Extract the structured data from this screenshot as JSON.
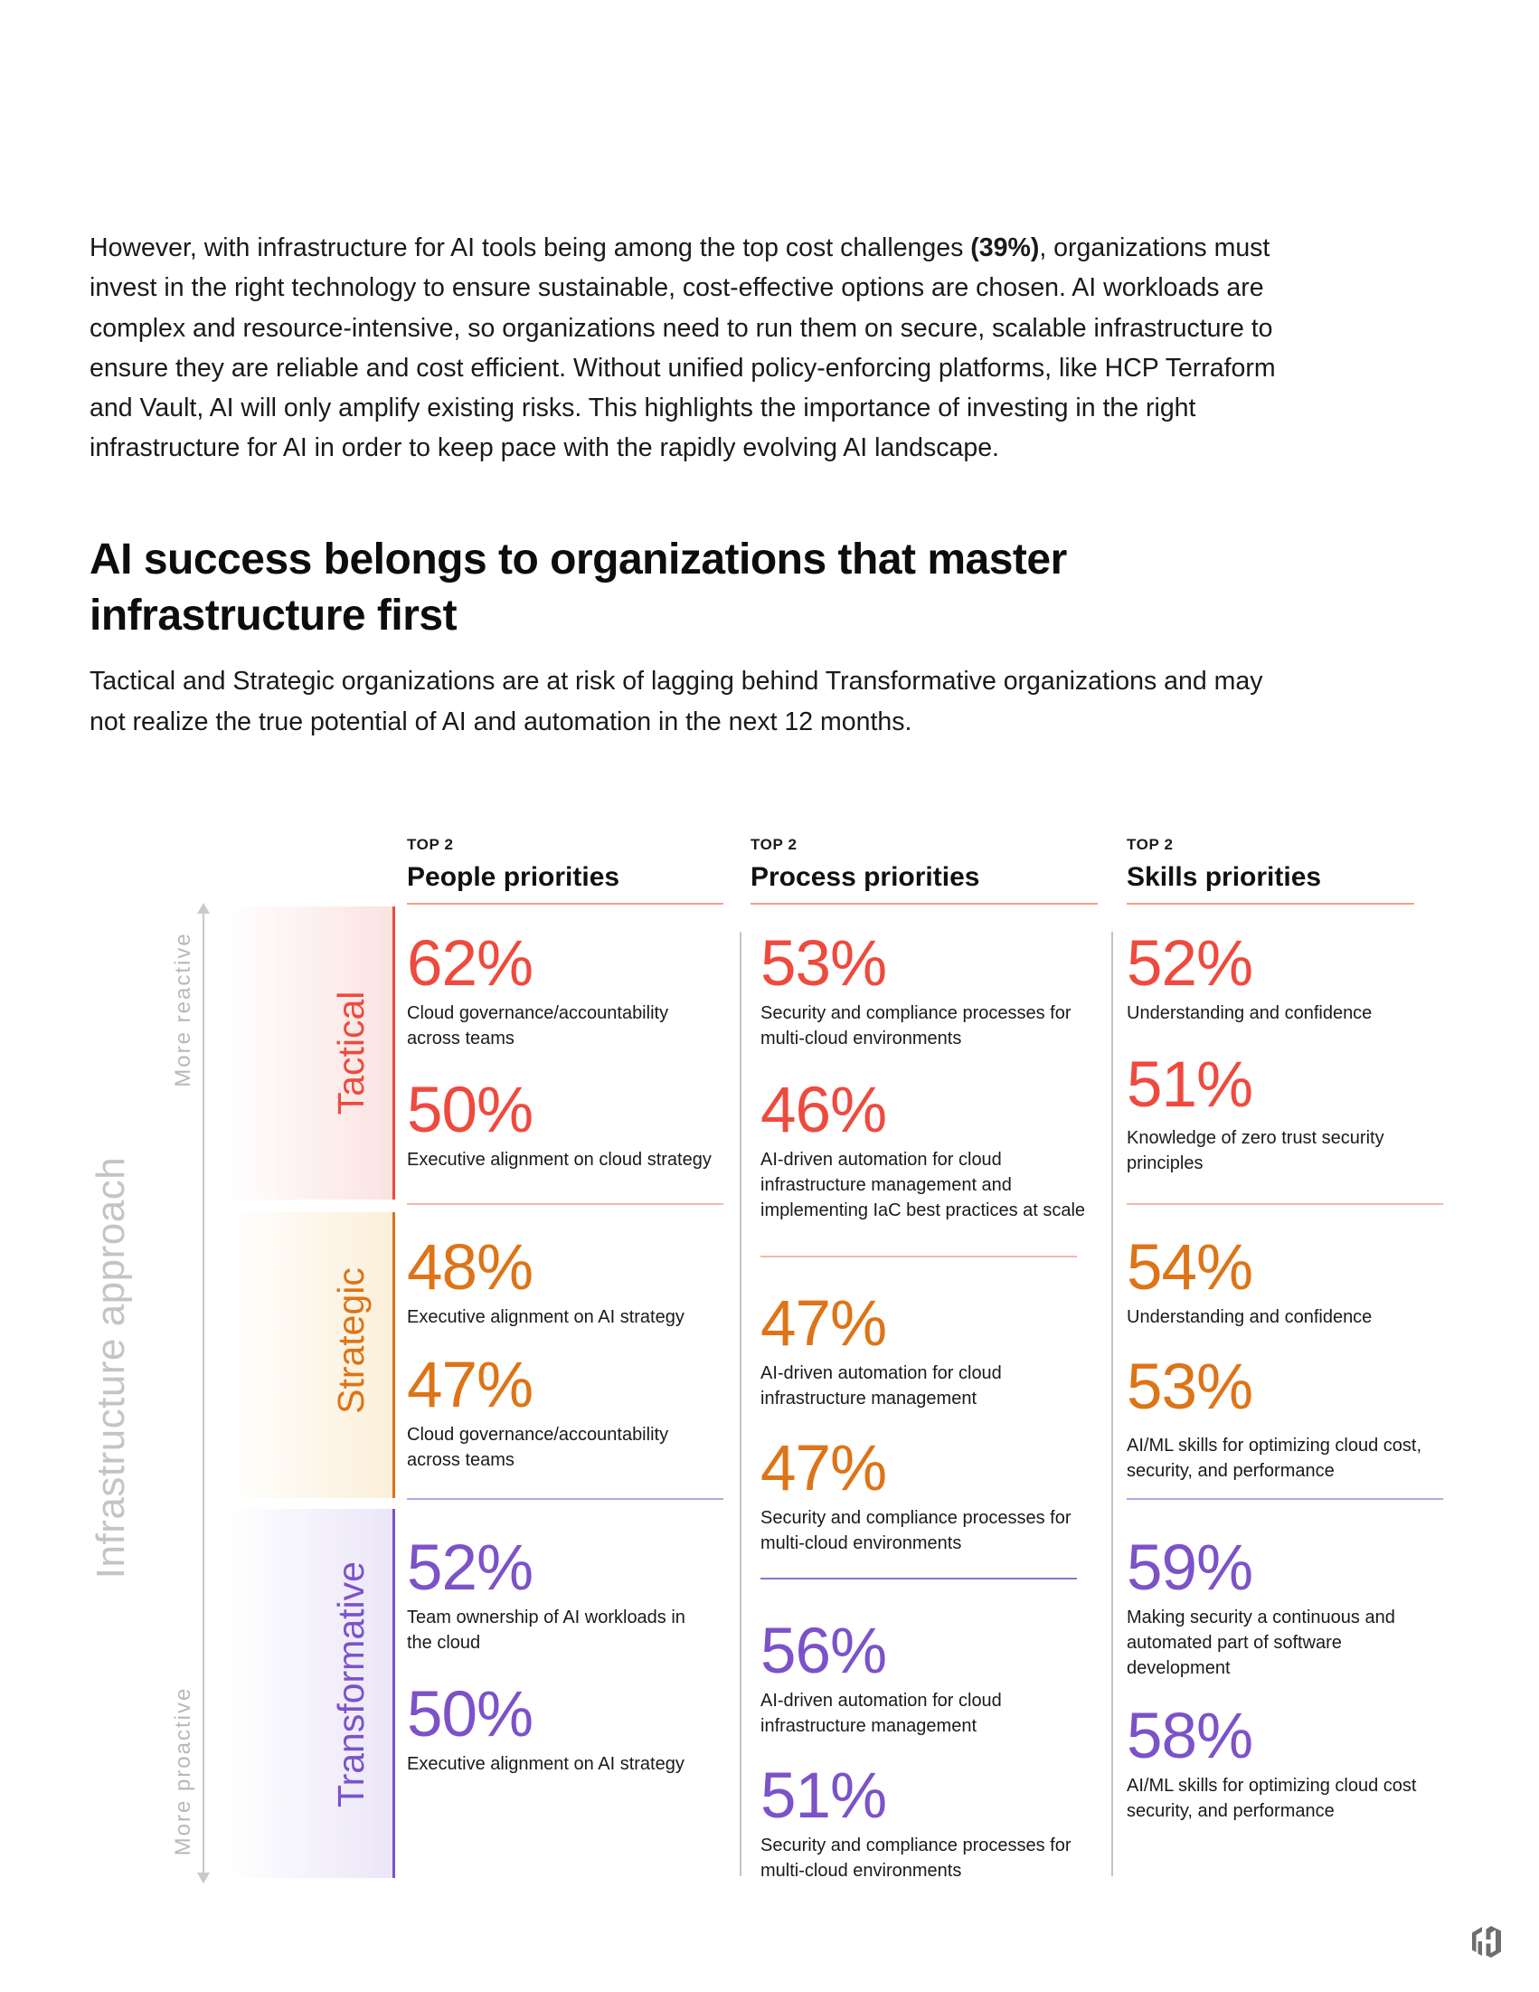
{
  "intro": {
    "text_before": "However, with infrastructure for AI tools being among the top cost challenges ",
    "highlight": "(39%)",
    "text_after": ", organizations must invest in the right technology to ensure sustainable, cost-effective options are chosen. AI workloads are complex and resource-intensive, so organizations need to run them on secure, scalable infrastructure to ensure they are reliable and cost efficient. Without unified policy-enforcing platforms, like HCP Terraform and Vault, AI will only amplify existing risks. This highlights the importance of investing in the right infrastructure for AI in order to keep pace with the rapidly evolving AI landscape."
  },
  "heading": "AI success belongs to organizations that master infrastructure first",
  "subtext": "Tactical and Strategic organizations are at risk of lagging behind Transformative organizations and may not realize the true potential of AI and automation in the next 12 months.",
  "axis": {
    "title": "Infrastructure approach",
    "top_label": "More reactive",
    "bottom_label": "More proactive"
  },
  "rows": {
    "tactical": {
      "label": "Tactical",
      "color": "#ee4a3e"
    },
    "strategic": {
      "label": "Strategic",
      "color": "#dd7417"
    },
    "transformative": {
      "label": "Transformative",
      "color": "#7c52c9"
    }
  },
  "columns": {
    "people": {
      "kicker": "TOP 2",
      "title": "People priorities",
      "tactical": [
        {
          "pct": "62%",
          "desc": "Cloud governance/accountability across teams"
        },
        {
          "pct": "50%",
          "desc": "Executive alignment on cloud strategy"
        }
      ],
      "strategic": [
        {
          "pct": "48%",
          "desc": "Executive alignment on AI strategy"
        },
        {
          "pct": "47%",
          "desc": "Cloud governance/accountability across teams"
        }
      ],
      "transformative": [
        {
          "pct": "52%",
          "desc": "Team ownership of AI workloads in the cloud"
        },
        {
          "pct": "50%",
          "desc": "Executive alignment on AI strategy"
        }
      ]
    },
    "process": {
      "kicker": "TOP 2",
      "title": "Process priorities",
      "tactical": [
        {
          "pct": "53%",
          "desc": "Security and compliance processes for multi-cloud environments"
        },
        {
          "pct": "46%",
          "desc": "AI-driven automation for cloud infrastructure management and implementing IaC best practices at scale"
        }
      ],
      "strategic": [
        {
          "pct": "47%",
          "desc": "AI-driven automation for cloud infrastructure management"
        },
        {
          "pct": "47%",
          "desc": "Security and compliance processes for multi-cloud environments"
        }
      ],
      "transformative": [
        {
          "pct": "56%",
          "desc": "AI-driven automation for cloud infrastructure management"
        },
        {
          "pct": "51%",
          "desc": "Security and compliance processes for multi-cloud environments"
        }
      ]
    },
    "skills": {
      "kicker": "TOP 2",
      "title": "Skills priorities",
      "tactical": [
        {
          "pct": "52%",
          "desc": "Understanding and confidence"
        },
        {
          "pct": "51%",
          "desc": "Knowledge of zero trust security principles"
        }
      ],
      "strategic": [
        {
          "pct": "54%",
          "desc": "Understanding and confidence"
        },
        {
          "pct": "53%",
          "desc": "AI/ML skills for optimizing cloud cost, security, and performance"
        }
      ],
      "transformative": [
        {
          "pct": "59%",
          "desc": "Making security a continuous and automated part of software development"
        },
        {
          "pct": "58%",
          "desc": "AI/ML skills for optimizing cloud cost security, and performance"
        }
      ]
    }
  },
  "logo_icon": "hashicorp-logo-icon"
}
